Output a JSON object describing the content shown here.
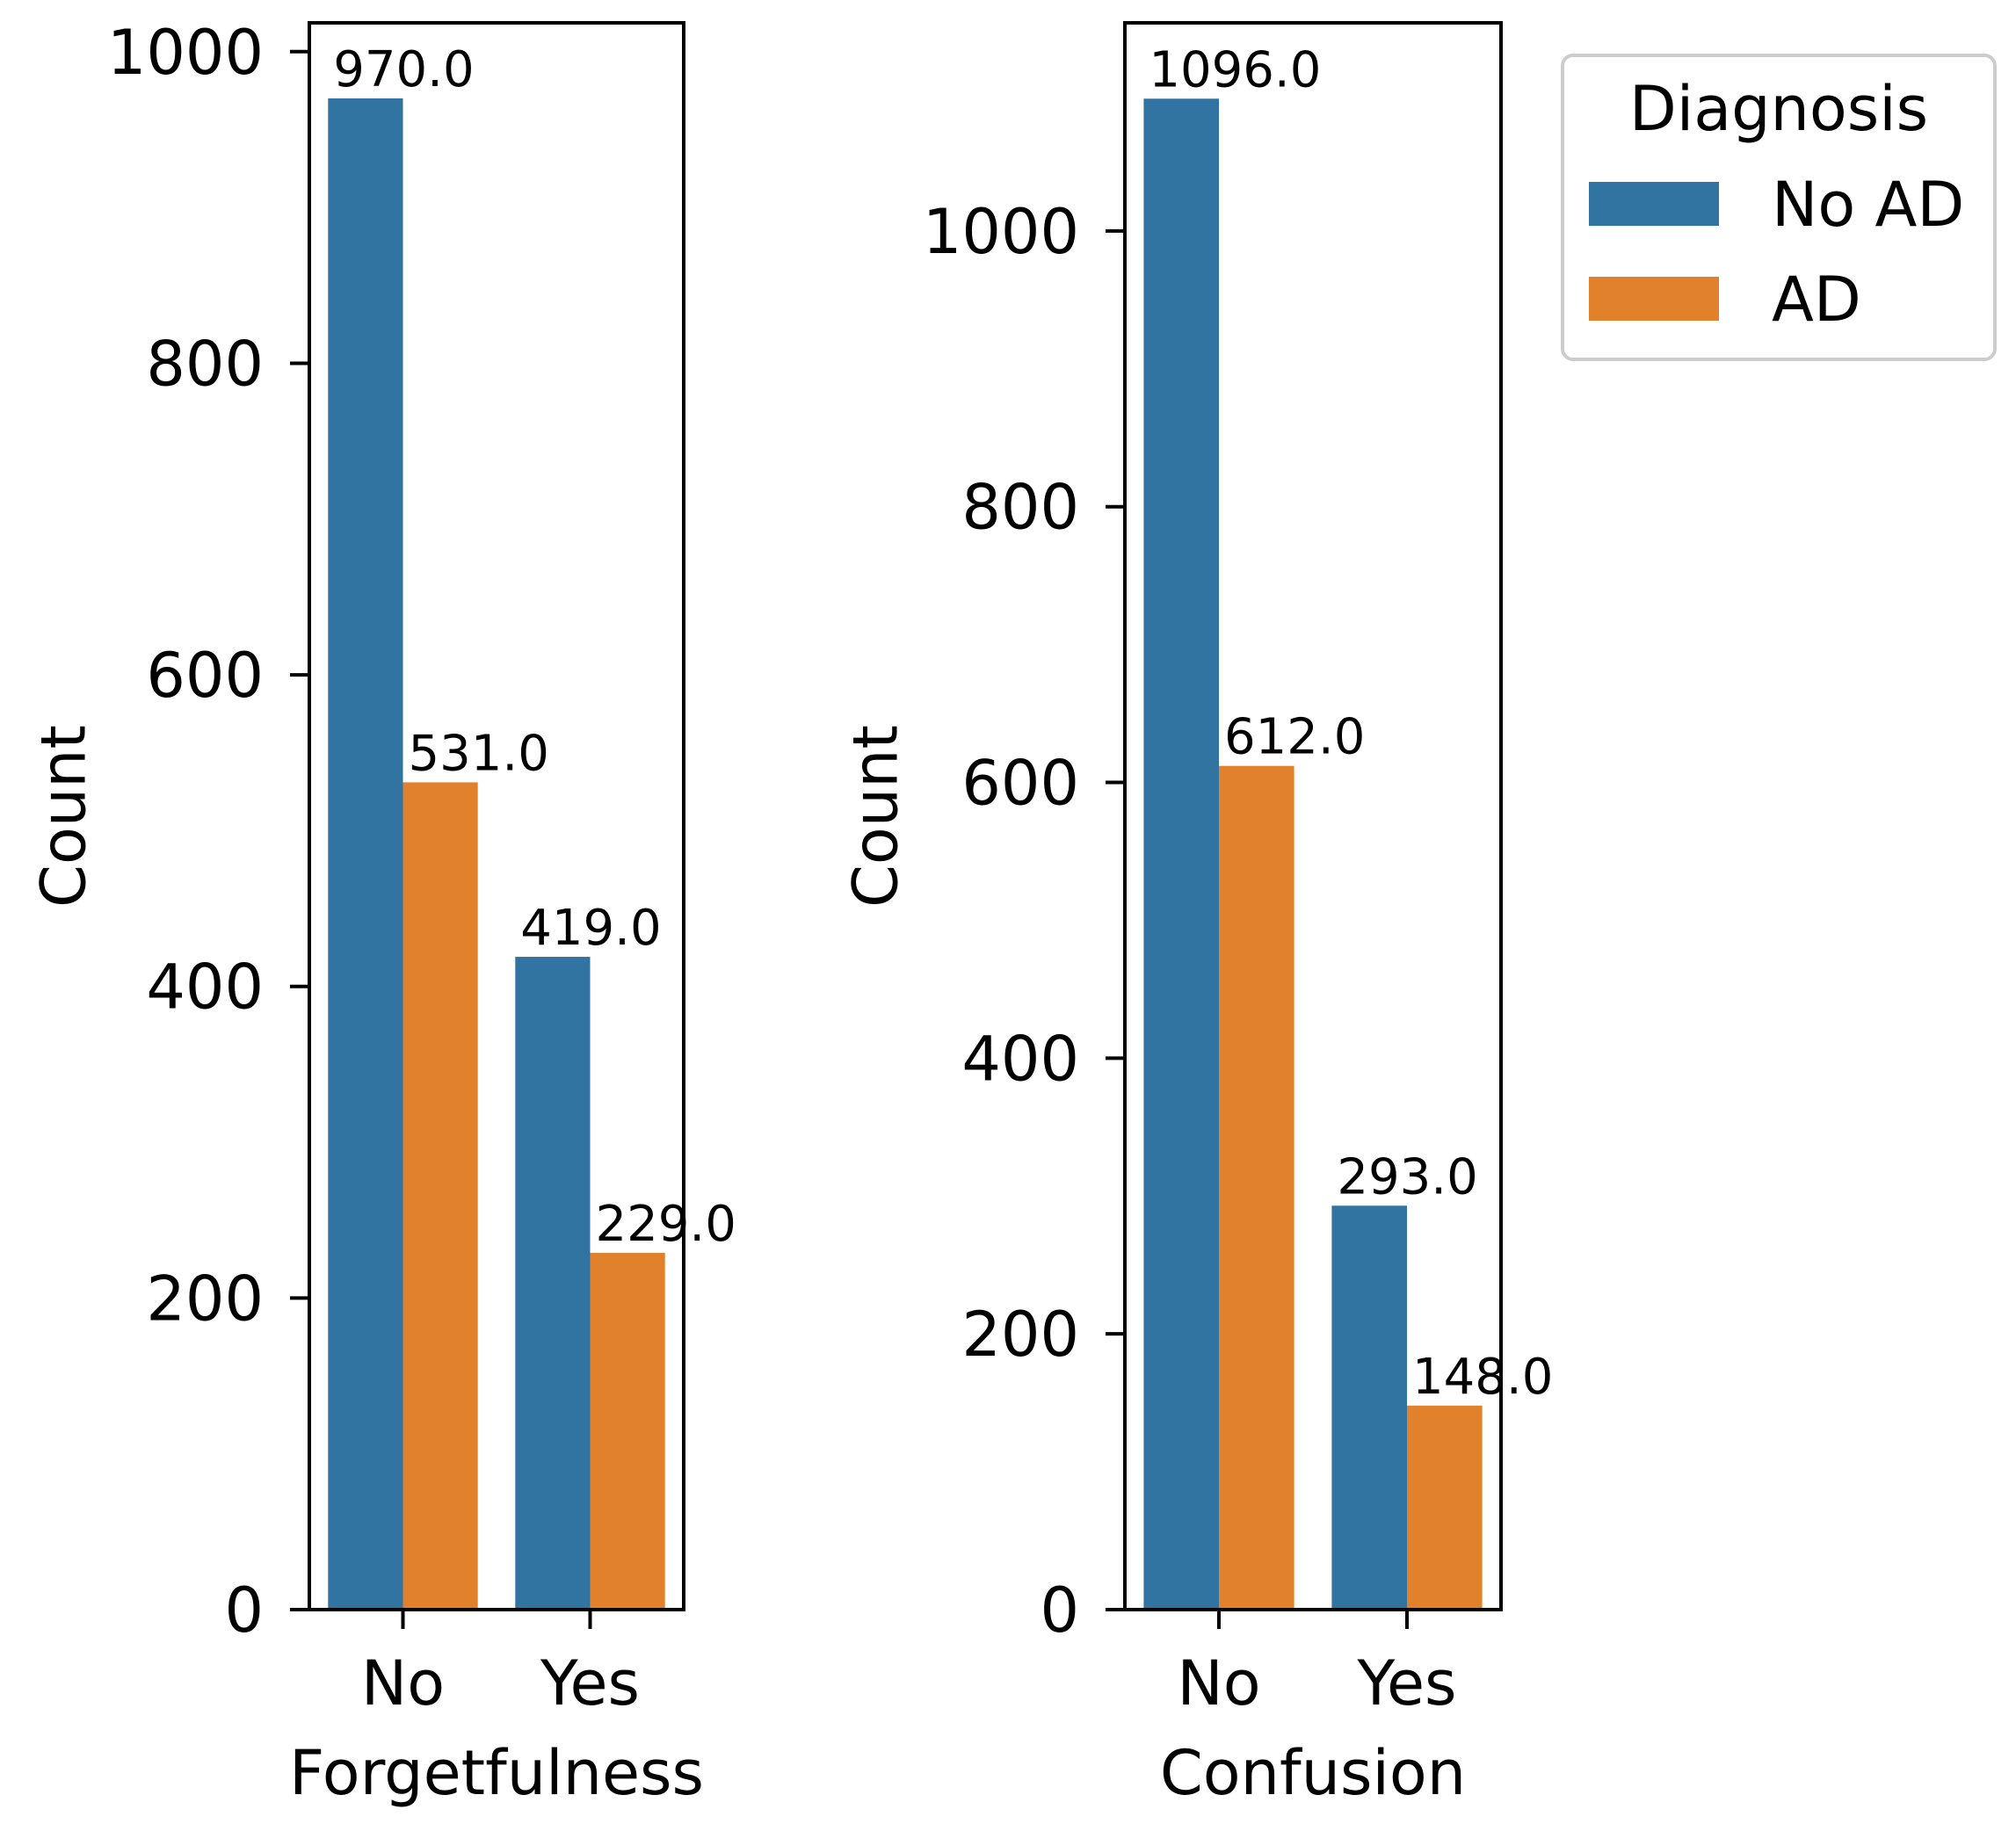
{
  "colors": {
    "no_ad": "#3274a1",
    "ad": "#e1812c",
    "axis": "#000000",
    "legend_border": "#cccccc",
    "background": "#ffffff"
  },
  "legend": {
    "title": "Diagnosis",
    "entries": [
      "No AD",
      "AD"
    ]
  },
  "chart_data": [
    {
      "type": "bar",
      "xlabel": "Forgetfulness",
      "ylabel": "Count",
      "categories": [
        "No",
        "Yes"
      ],
      "series": [
        {
          "name": "No AD",
          "values": [
            970,
            419
          ],
          "labels": [
            "970.0",
            "419.0"
          ]
        },
        {
          "name": "AD",
          "values": [
            531,
            229
          ],
          "labels": [
            "531.0",
            "229.0"
          ]
        }
      ],
      "ylim": [
        0,
        1018.5
      ],
      "yticks": [
        0,
        200,
        400,
        600,
        800,
        1000
      ],
      "ytick_labels": [
        "0",
        "200",
        "400",
        "600",
        "800",
        "1000"
      ]
    },
    {
      "type": "bar",
      "xlabel": "Confusion",
      "ylabel": "Count",
      "categories": [
        "No",
        "Yes"
      ],
      "series": [
        {
          "name": "No AD",
          "values": [
            1096,
            293
          ],
          "labels": [
            "1096.0",
            "293.0"
          ]
        },
        {
          "name": "AD",
          "values": [
            612,
            148
          ],
          "labels": [
            "612.0",
            "148.0"
          ]
        }
      ],
      "ylim": [
        0,
        1151
      ],
      "yticks": [
        0,
        200,
        400,
        600,
        800,
        1000
      ],
      "ytick_labels": [
        "0",
        "200",
        "400",
        "600",
        "800",
        "1000"
      ]
    }
  ]
}
